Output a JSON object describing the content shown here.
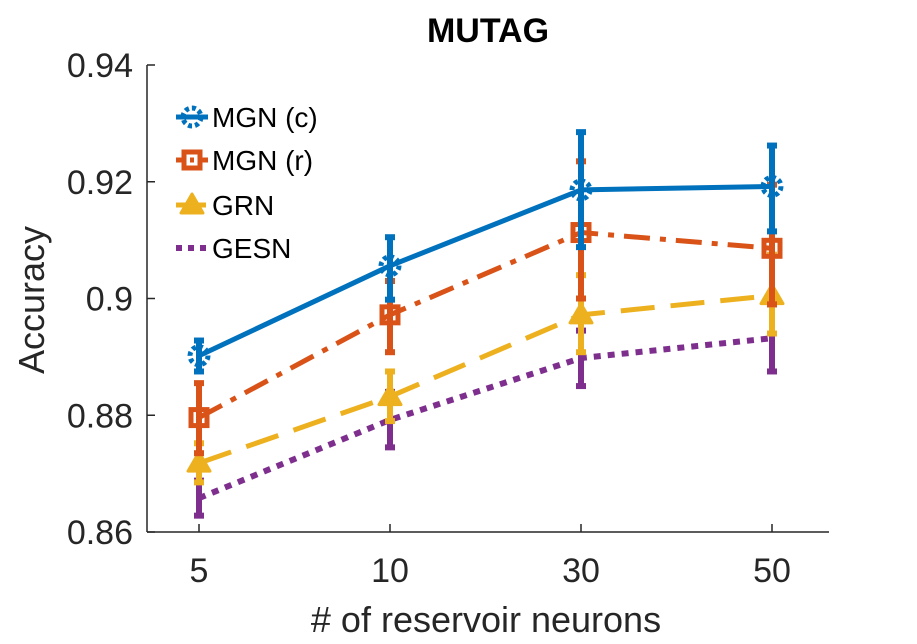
{
  "chart_data": {
    "type": "line",
    "title": "MUTAG",
    "xlabel": "# of reservoir neurons",
    "ylabel": "Accuracy",
    "categories": [
      "5",
      "10",
      "30",
      "50"
    ],
    "ylim": [
      0.86,
      0.94
    ],
    "yticks": [
      "0.86",
      "0.88",
      "0.9",
      "0.92",
      "0.94"
    ],
    "ytick_values": [
      0.86,
      0.88,
      0.9,
      0.92,
      0.94
    ],
    "legend_position": "top-left",
    "series": [
      {
        "name": "MGN (c)",
        "color": "#0072BD",
        "line_style": "solid",
        "marker": "circle",
        "values": [
          0.8902,
          0.9056,
          0.9186,
          0.9192
        ],
        "err_low": [
          0.8875,
          0.8998,
          0.9088,
          0.9115
        ],
        "err_high": [
          0.8928,
          0.9105,
          0.9285,
          0.9262
        ]
      },
      {
        "name": "MGN (r)",
        "color": "#D95319",
        "line_style": "dashdot",
        "marker": "square",
        "values": [
          0.8796,
          0.8972,
          0.9113,
          0.9086
        ],
        "err_low": [
          0.8735,
          0.8908,
          0.9,
          0.899
        ],
        "err_high": [
          0.8855,
          0.903,
          0.9235,
          0.9195
        ]
      },
      {
        "name": "GRN",
        "color": "#EDB120",
        "line_style": "dashed",
        "marker": "triangle",
        "values": [
          0.8718,
          0.8832,
          0.8972,
          0.9005
        ],
        "err_low": [
          0.8685,
          0.879,
          0.8908,
          0.894
        ],
        "err_high": [
          0.8752,
          0.8875,
          0.904,
          0.9075
        ]
      },
      {
        "name": "GESN",
        "color": "#7E2F8E",
        "line_style": "dotted",
        "marker": "none",
        "values": [
          0.8658,
          0.8792,
          0.8898,
          0.8932
        ],
        "err_low": [
          0.8628,
          0.8745,
          0.885,
          0.8875
        ],
        "err_high": [
          0.8688,
          0.884,
          0.8945,
          0.899
        ]
      }
    ]
  }
}
